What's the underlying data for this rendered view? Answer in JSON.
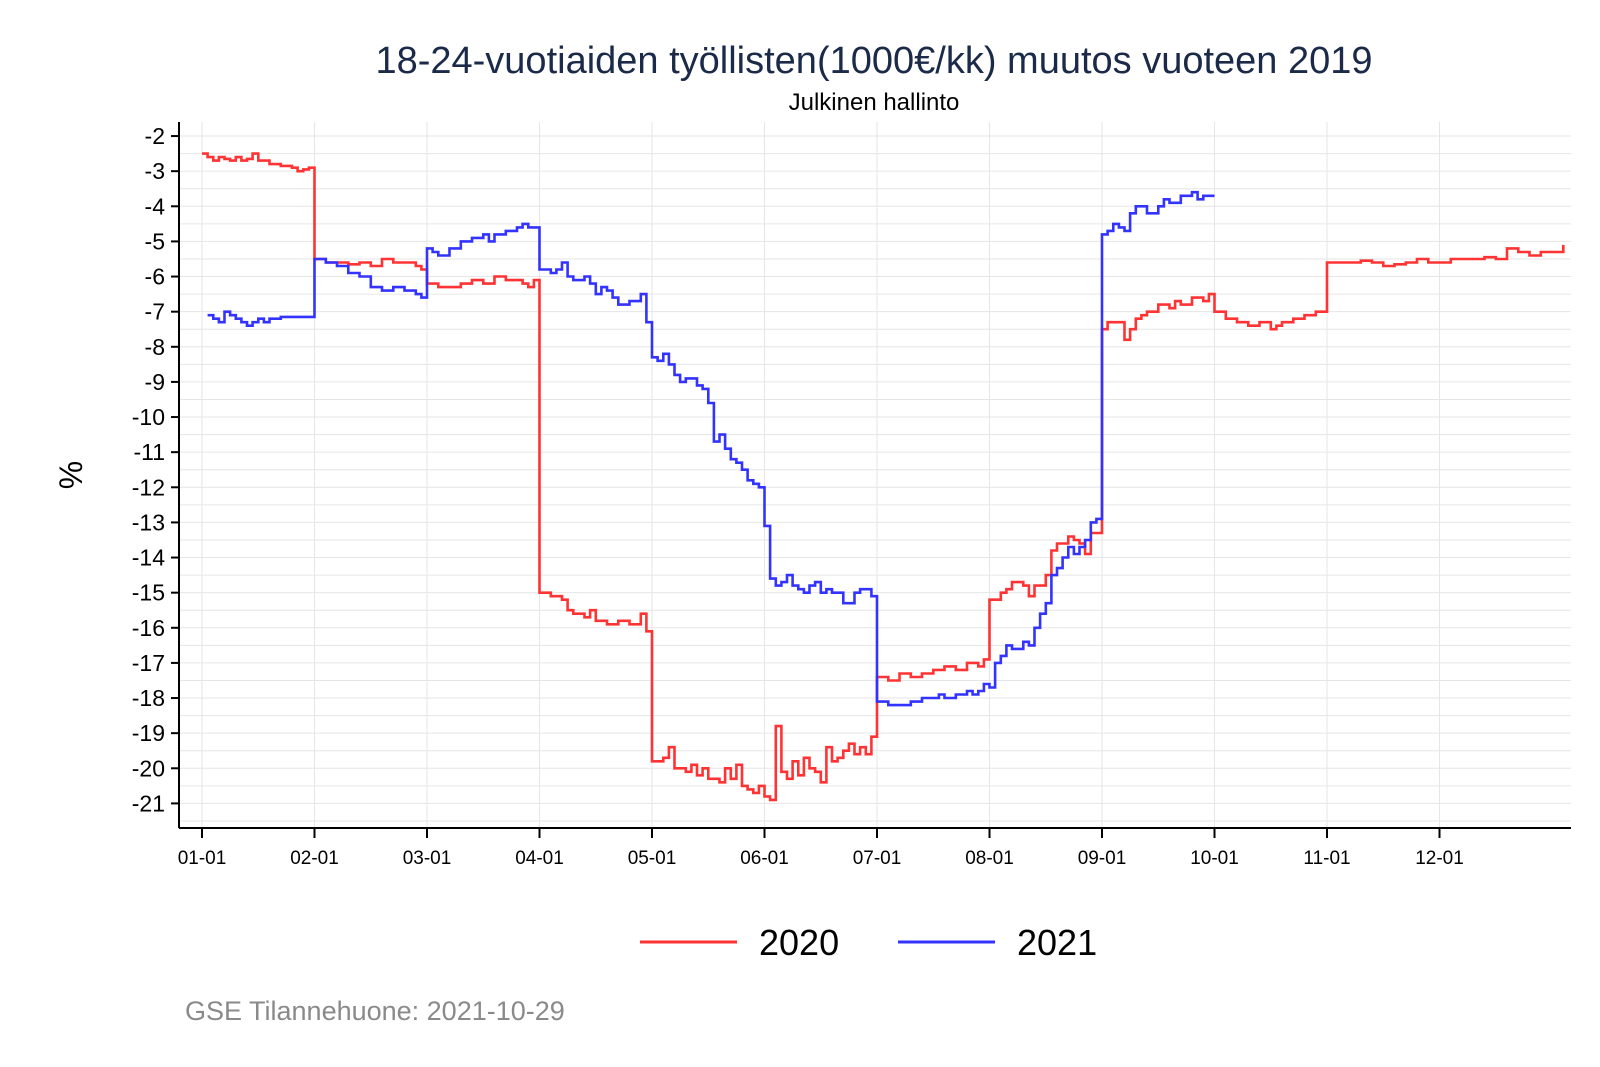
{
  "chart_data": {
    "type": "line",
    "title": "18-24-vuotiaiden työllisten(1000€/kk) muutos vuoteen 2019",
    "subtitle": "Julkinen hallinto",
    "xlabel": "",
    "ylabel": "%",
    "ylim": [
      -21.7,
      -1.6
    ],
    "yticks": [
      -2,
      -3,
      -4,
      -5,
      -6,
      -7,
      -8,
      -9,
      -10,
      -11,
      -12,
      -13,
      -14,
      -15,
      -16,
      -17,
      -18,
      -19,
      -20,
      -21
    ],
    "xlim": [
      -0.05,
      12.3
    ],
    "xticks": [
      {
        "x": 0,
        "label": "01-01"
      },
      {
        "x": 1,
        "label": "02-01"
      },
      {
        "x": 2,
        "label": "03-01"
      },
      {
        "x": 3,
        "label": "04-01"
      },
      {
        "x": 4,
        "label": "05-01"
      },
      {
        "x": 5,
        "label": "06-01"
      },
      {
        "x": 6,
        "label": "07-01"
      },
      {
        "x": 7,
        "label": "08-01"
      },
      {
        "x": 8,
        "label": "09-01"
      },
      {
        "x": 9,
        "label": "10-01"
      },
      {
        "x": 10,
        "label": "11-01"
      },
      {
        "x": 11,
        "label": "12-01"
      }
    ],
    "grid": true,
    "legend_position": "bottom",
    "series": [
      {
        "name": "2020",
        "color": "#ff3333",
        "points": [
          [
            0.0,
            -2.5
          ],
          [
            0.05,
            -2.6
          ],
          [
            0.1,
            -2.7
          ],
          [
            0.15,
            -2.6
          ],
          [
            0.2,
            -2.65
          ],
          [
            0.25,
            -2.7
          ],
          [
            0.3,
            -2.6
          ],
          [
            0.35,
            -2.7
          ],
          [
            0.4,
            -2.65
          ],
          [
            0.45,
            -2.5
          ],
          [
            0.5,
            -2.7
          ],
          [
            0.6,
            -2.8
          ],
          [
            0.7,
            -2.85
          ],
          [
            0.8,
            -2.9
          ],
          [
            0.85,
            -3.0
          ],
          [
            0.9,
            -2.95
          ],
          [
            0.95,
            -2.9
          ],
          [
            1.0,
            -5.5
          ],
          [
            1.1,
            -5.6
          ],
          [
            1.2,
            -5.6
          ],
          [
            1.3,
            -5.65
          ],
          [
            1.4,
            -5.6
          ],
          [
            1.5,
            -5.7
          ],
          [
            1.6,
            -5.5
          ],
          [
            1.7,
            -5.6
          ],
          [
            1.8,
            -5.6
          ],
          [
            1.9,
            -5.7
          ],
          [
            1.95,
            -5.8
          ],
          [
            2.0,
            -6.2
          ],
          [
            2.1,
            -6.3
          ],
          [
            2.2,
            -6.3
          ],
          [
            2.3,
            -6.2
          ],
          [
            2.4,
            -6.1
          ],
          [
            2.5,
            -6.2
          ],
          [
            2.6,
            -6.0
          ],
          [
            2.7,
            -6.1
          ],
          [
            2.8,
            -6.1
          ],
          [
            2.85,
            -6.2
          ],
          [
            2.9,
            -6.3
          ],
          [
            2.95,
            -6.1
          ],
          [
            3.0,
            -15.0
          ],
          [
            3.1,
            -15.1
          ],
          [
            3.2,
            -15.2
          ],
          [
            3.25,
            -15.5
          ],
          [
            3.3,
            -15.6
          ],
          [
            3.4,
            -15.7
          ],
          [
            3.45,
            -15.5
          ],
          [
            3.5,
            -15.8
          ],
          [
            3.6,
            -15.9
          ],
          [
            3.7,
            -15.8
          ],
          [
            3.8,
            -15.9
          ],
          [
            3.9,
            -15.6
          ],
          [
            3.95,
            -16.1
          ],
          [
            4.0,
            -19.8
          ],
          [
            4.1,
            -19.7
          ],
          [
            4.15,
            -19.4
          ],
          [
            4.2,
            -20.0
          ],
          [
            4.3,
            -20.1
          ],
          [
            4.35,
            -19.9
          ],
          [
            4.4,
            -20.2
          ],
          [
            4.45,
            -20.0
          ],
          [
            4.5,
            -20.3
          ],
          [
            4.6,
            -20.4
          ],
          [
            4.65,
            -20.0
          ],
          [
            4.7,
            -20.3
          ],
          [
            4.75,
            -19.9
          ],
          [
            4.8,
            -20.5
          ],
          [
            4.85,
            -20.6
          ],
          [
            4.9,
            -20.7
          ],
          [
            4.95,
            -20.5
          ],
          [
            5.0,
            -20.8
          ],
          [
            5.05,
            -20.9
          ],
          [
            5.1,
            -18.8
          ],
          [
            5.15,
            -20.1
          ],
          [
            5.2,
            -20.3
          ],
          [
            5.25,
            -19.8
          ],
          [
            5.3,
            -20.2
          ],
          [
            5.35,
            -19.7
          ],
          [
            5.4,
            -20.0
          ],
          [
            5.45,
            -20.1
          ],
          [
            5.5,
            -20.4
          ],
          [
            5.55,
            -19.4
          ],
          [
            5.6,
            -19.8
          ],
          [
            5.65,
            -19.7
          ],
          [
            5.7,
            -19.5
          ],
          [
            5.75,
            -19.3
          ],
          [
            5.8,
            -19.6
          ],
          [
            5.85,
            -19.4
          ],
          [
            5.9,
            -19.6
          ],
          [
            5.95,
            -19.1
          ],
          [
            6.0,
            -17.4
          ],
          [
            6.1,
            -17.5
          ],
          [
            6.2,
            -17.3
          ],
          [
            6.3,
            -17.4
          ],
          [
            6.4,
            -17.3
          ],
          [
            6.5,
            -17.2
          ],
          [
            6.6,
            -17.1
          ],
          [
            6.7,
            -17.2
          ],
          [
            6.8,
            -17.0
          ],
          [
            6.9,
            -17.1
          ],
          [
            6.95,
            -16.9
          ],
          [
            7.0,
            -15.2
          ],
          [
            7.1,
            -15.0
          ],
          [
            7.15,
            -14.9
          ],
          [
            7.2,
            -14.7
          ],
          [
            7.3,
            -14.8
          ],
          [
            7.35,
            -15.1
          ],
          [
            7.4,
            -14.8
          ],
          [
            7.5,
            -14.5
          ],
          [
            7.55,
            -13.8
          ],
          [
            7.6,
            -13.6
          ],
          [
            7.7,
            -13.4
          ],
          [
            7.75,
            -13.5
          ],
          [
            7.8,
            -13.6
          ],
          [
            7.85,
            -13.9
          ],
          [
            7.9,
            -13.3
          ],
          [
            8.0,
            -7.5
          ],
          [
            8.05,
            -7.3
          ],
          [
            8.1,
            -7.3
          ],
          [
            8.15,
            -7.3
          ],
          [
            8.2,
            -7.8
          ],
          [
            8.25,
            -7.5
          ],
          [
            8.3,
            -7.2
          ],
          [
            8.35,
            -7.1
          ],
          [
            8.4,
            -7.0
          ],
          [
            8.5,
            -6.8
          ],
          [
            8.6,
            -6.9
          ],
          [
            8.65,
            -6.7
          ],
          [
            8.7,
            -6.8
          ],
          [
            8.8,
            -6.6
          ],
          [
            8.9,
            -6.7
          ],
          [
            8.95,
            -6.5
          ],
          [
            9.0,
            -7.0
          ],
          [
            9.1,
            -7.2
          ],
          [
            9.2,
            -7.3
          ],
          [
            9.3,
            -7.4
          ],
          [
            9.4,
            -7.3
          ],
          [
            9.5,
            -7.5
          ],
          [
            9.55,
            -7.4
          ],
          [
            9.6,
            -7.3
          ],
          [
            9.7,
            -7.2
          ],
          [
            9.8,
            -7.1
          ],
          [
            9.9,
            -7.0
          ],
          [
            10.0,
            -5.6
          ],
          [
            10.2,
            -5.6
          ],
          [
            10.3,
            -5.55
          ],
          [
            10.4,
            -5.6
          ],
          [
            10.5,
            -5.7
          ],
          [
            10.6,
            -5.65
          ],
          [
            10.7,
            -5.6
          ],
          [
            10.8,
            -5.5
          ],
          [
            10.9,
            -5.6
          ],
          [
            11.0,
            -5.6
          ],
          [
            11.1,
            -5.5
          ],
          [
            11.2,
            -5.5
          ],
          [
            11.3,
            -5.5
          ],
          [
            11.4,
            -5.45
          ],
          [
            11.5,
            -5.5
          ],
          [
            11.6,
            -5.2
          ],
          [
            11.7,
            -5.3
          ],
          [
            11.8,
            -5.4
          ],
          [
            11.9,
            -5.3
          ],
          [
            12.0,
            -5.3
          ],
          [
            12.1,
            -5.1
          ]
        ]
      },
      {
        "name": "2021",
        "color": "#3333ff",
        "points": [
          [
            0.05,
            -7.1
          ],
          [
            0.1,
            -7.2
          ],
          [
            0.15,
            -7.3
          ],
          [
            0.2,
            -7.0
          ],
          [
            0.25,
            -7.1
          ],
          [
            0.3,
            -7.2
          ],
          [
            0.35,
            -7.3
          ],
          [
            0.4,
            -7.4
          ],
          [
            0.45,
            -7.3
          ],
          [
            0.5,
            -7.2
          ],
          [
            0.55,
            -7.3
          ],
          [
            0.6,
            -7.2
          ],
          [
            0.7,
            -7.15
          ],
          [
            0.8,
            -7.15
          ],
          [
            0.9,
            -7.15
          ],
          [
            0.95,
            -7.15
          ],
          [
            1.0,
            -5.5
          ],
          [
            1.1,
            -5.6
          ],
          [
            1.2,
            -5.7
          ],
          [
            1.3,
            -5.9
          ],
          [
            1.4,
            -6.0
          ],
          [
            1.5,
            -6.3
          ],
          [
            1.6,
            -6.4
          ],
          [
            1.7,
            -6.3
          ],
          [
            1.8,
            -6.4
          ],
          [
            1.9,
            -6.5
          ],
          [
            1.95,
            -6.6
          ],
          [
            2.0,
            -5.2
          ],
          [
            2.05,
            -5.3
          ],
          [
            2.1,
            -5.4
          ],
          [
            2.2,
            -5.2
          ],
          [
            2.3,
            -5.0
          ],
          [
            2.4,
            -4.9
          ],
          [
            2.5,
            -4.8
          ],
          [
            2.55,
            -5.0
          ],
          [
            2.6,
            -4.8
          ],
          [
            2.7,
            -4.7
          ],
          [
            2.8,
            -4.6
          ],
          [
            2.85,
            -4.5
          ],
          [
            2.9,
            -4.6
          ],
          [
            3.0,
            -5.8
          ],
          [
            3.1,
            -5.9
          ],
          [
            3.15,
            -5.8
          ],
          [
            3.2,
            -5.6
          ],
          [
            3.25,
            -6.0
          ],
          [
            3.3,
            -6.1
          ],
          [
            3.4,
            -6.0
          ],
          [
            3.45,
            -6.2
          ],
          [
            3.5,
            -6.5
          ],
          [
            3.55,
            -6.3
          ],
          [
            3.6,
            -6.4
          ],
          [
            3.65,
            -6.6
          ],
          [
            3.7,
            -6.8
          ],
          [
            3.8,
            -6.7
          ],
          [
            3.9,
            -6.5
          ],
          [
            3.95,
            -7.3
          ],
          [
            4.0,
            -8.3
          ],
          [
            4.05,
            -8.4
          ],
          [
            4.1,
            -8.2
          ],
          [
            4.15,
            -8.5
          ],
          [
            4.2,
            -8.8
          ],
          [
            4.25,
            -9.0
          ],
          [
            4.3,
            -8.9
          ],
          [
            4.4,
            -9.1
          ],
          [
            4.45,
            -9.2
          ],
          [
            4.5,
            -9.6
          ],
          [
            4.55,
            -10.7
          ],
          [
            4.6,
            -10.5
          ],
          [
            4.65,
            -10.9
          ],
          [
            4.7,
            -11.2
          ],
          [
            4.75,
            -11.3
          ],
          [
            4.8,
            -11.5
          ],
          [
            4.85,
            -11.8
          ],
          [
            4.9,
            -11.9
          ],
          [
            4.95,
            -12.0
          ],
          [
            5.0,
            -13.1
          ],
          [
            5.05,
            -14.6
          ],
          [
            5.1,
            -14.8
          ],
          [
            5.15,
            -14.7
          ],
          [
            5.2,
            -14.5
          ],
          [
            5.25,
            -14.8
          ],
          [
            5.3,
            -14.9
          ],
          [
            5.35,
            -15.0
          ],
          [
            5.4,
            -14.8
          ],
          [
            5.45,
            -14.7
          ],
          [
            5.5,
            -15.0
          ],
          [
            5.55,
            -14.9
          ],
          [
            5.6,
            -15.0
          ],
          [
            5.7,
            -15.3
          ],
          [
            5.8,
            -15.0
          ],
          [
            5.85,
            -14.9
          ],
          [
            5.95,
            -15.1
          ],
          [
            6.0,
            -18.1
          ],
          [
            6.1,
            -18.2
          ],
          [
            6.2,
            -18.2
          ],
          [
            6.3,
            -18.1
          ],
          [
            6.4,
            -18.0
          ],
          [
            6.5,
            -18.0
          ],
          [
            6.55,
            -17.9
          ],
          [
            6.6,
            -18.0
          ],
          [
            6.7,
            -17.9
          ],
          [
            6.8,
            -17.8
          ],
          [
            6.85,
            -17.9
          ],
          [
            6.9,
            -17.8
          ],
          [
            6.95,
            -17.6
          ],
          [
            7.0,
            -17.7
          ],
          [
            7.05,
            -17.0
          ],
          [
            7.1,
            -16.8
          ],
          [
            7.15,
            -16.5
          ],
          [
            7.2,
            -16.6
          ],
          [
            7.3,
            -16.4
          ],
          [
            7.35,
            -16.5
          ],
          [
            7.4,
            -16.0
          ],
          [
            7.45,
            -15.6
          ],
          [
            7.5,
            -15.3
          ],
          [
            7.55,
            -14.5
          ],
          [
            7.6,
            -14.3
          ],
          [
            7.65,
            -14.0
          ],
          [
            7.7,
            -13.7
          ],
          [
            7.75,
            -13.9
          ],
          [
            7.8,
            -13.7
          ],
          [
            7.85,
            -13.5
          ],
          [
            7.9,
            -13.0
          ],
          [
            7.95,
            -12.9
          ],
          [
            8.0,
            -4.8
          ],
          [
            8.05,
            -4.7
          ],
          [
            8.1,
            -4.5
          ],
          [
            8.15,
            -4.6
          ],
          [
            8.2,
            -4.7
          ],
          [
            8.25,
            -4.2
          ],
          [
            8.3,
            -4.0
          ],
          [
            8.4,
            -4.2
          ],
          [
            8.5,
            -4.0
          ],
          [
            8.55,
            -3.8
          ],
          [
            8.6,
            -3.9
          ],
          [
            8.7,
            -3.7
          ],
          [
            8.8,
            -3.6
          ],
          [
            8.85,
            -3.8
          ],
          [
            8.9,
            -3.7
          ],
          [
            8.95,
            -3.7
          ],
          [
            9.0,
            -3.7
          ]
        ]
      }
    ]
  },
  "footer": "GSE Tilannehuone: 2021-10-29"
}
